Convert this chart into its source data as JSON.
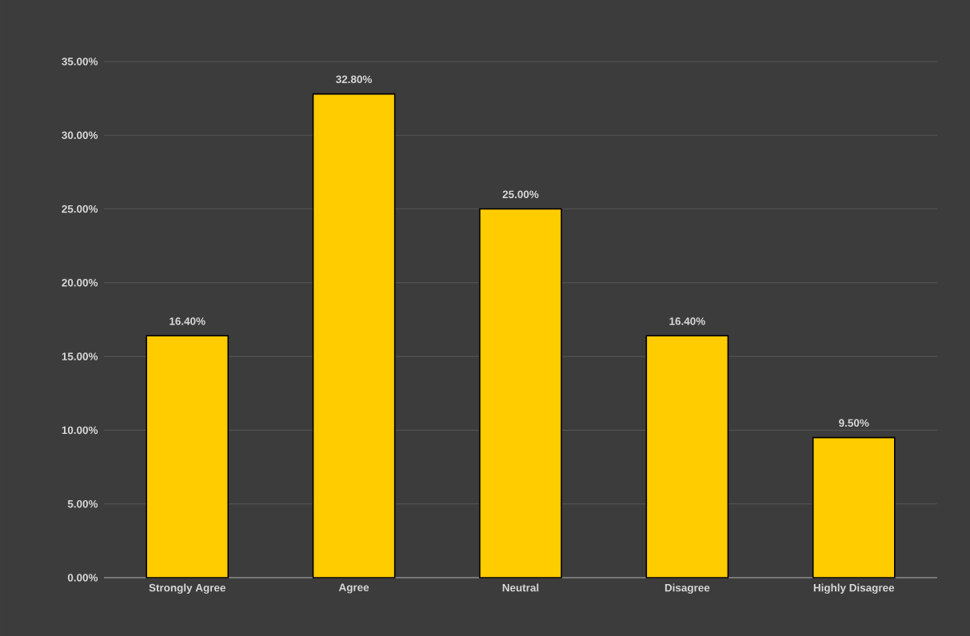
{
  "chart_data": {
    "type": "bar",
    "categories": [
      "Strongly Agree",
      "Agree",
      "Neutral",
      "Disagree",
      "Highly Disagree"
    ],
    "values": [
      16.4,
      32.8,
      25.0,
      16.4,
      9.5
    ],
    "value_labels": [
      "16.40%",
      "32.80%",
      "25.00%",
      "16.40%",
      "9.50%"
    ],
    "color": "#ffcc00",
    "ylim": [
      0,
      35
    ],
    "yticks": [
      {
        "value": 0,
        "label": "0.00%"
      },
      {
        "value": 5,
        "label": "5.00%"
      },
      {
        "value": 10,
        "label": "10.00%"
      },
      {
        "value": 15,
        "label": "15.00%"
      },
      {
        "value": 20,
        "label": "20.00%"
      },
      {
        "value": 25,
        "label": "25.00%"
      },
      {
        "value": 30,
        "label": "30.00%"
      },
      {
        "value": 35,
        "label": "35.00%"
      }
    ],
    "grid": "y"
  }
}
